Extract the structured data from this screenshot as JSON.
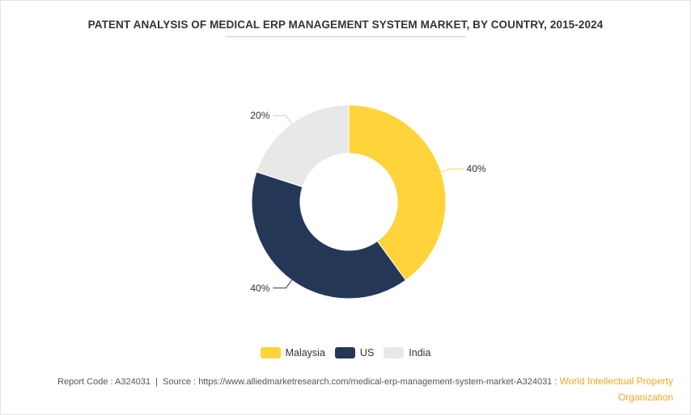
{
  "chart_data": {
    "type": "donut",
    "title": "PATENT ANALYSIS OF MEDICAL ERP MANAGEMENT SYSTEM MARKET, BY COUNTRY, 2015-2024",
    "slices": [
      {
        "label": "Malaysia",
        "value": 40,
        "display": "40%",
        "color": "#ffd43b"
      },
      {
        "label": "US",
        "value": 40,
        "display": "40%",
        "color": "#253757"
      },
      {
        "label": "India",
        "value": 20,
        "display": "20%",
        "color": "#e8e8e8"
      }
    ],
    "legend_position": "bottom-center"
  },
  "footer": {
    "report_code_label": "Report Code : ",
    "report_code": "A324031",
    "separator": "  |  ",
    "source_label": "Source : ",
    "source_url": "https://www.alliedmarketresearch.com/medical-erp-management-system-market-A324031",
    "colon": " : ",
    "org_line1": "World Intellectual Property",
    "org_line2": "Organization"
  }
}
